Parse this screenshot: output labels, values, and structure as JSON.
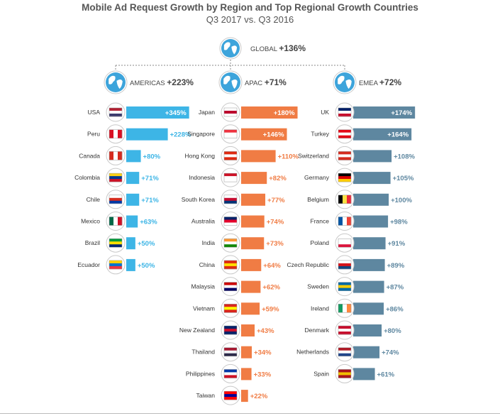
{
  "chart_data": {
    "type": "bar",
    "title": "Mobile Ad Request Growth by Region and Top Regional Growth Countries",
    "subtitle": "Q3 2017 vs. Q3 2016",
    "global": {
      "label": "GLOBAL",
      "value_label": "+136%",
      "value": 136
    },
    "colors": {
      "americas": "#3DB5E6",
      "apac": "#F07C44",
      "emea": "#5E87A0",
      "apac_label": "#F07C44",
      "globe": "#3DA4DB"
    },
    "regions": [
      {
        "key": "americas",
        "label": "AMERICAS",
        "value_label": "+223%",
        "value": 223,
        "countries": [
          "USA",
          "Peru",
          "Canada",
          "Colombia",
          "Chile",
          "Mexico",
          "Brazil",
          "Ecuador"
        ],
        "values": [
          345,
          228,
          80,
          71,
          71,
          63,
          50,
          50
        ],
        "value_labels": [
          "+345%",
          "+228%",
          "+80%",
          "+71%",
          "+71%",
          "+63%",
          "+50%",
          "+50%"
        ]
      },
      {
        "key": "apac",
        "label": "APAC",
        "value_label": "+71%",
        "value": 71,
        "countries": [
          "Japan",
          "Singapore",
          "Hong Kong",
          "Indonesia",
          "South Korea",
          "Australia",
          "India",
          "China",
          "Malaysia",
          "Vietnam",
          "New Zealand",
          "Thailand",
          "Philippines",
          "Taiwan"
        ],
        "values": [
          180,
          146,
          110,
          82,
          77,
          74,
          73,
          64,
          62,
          59,
          43,
          34,
          33,
          22
        ],
        "value_labels": [
          "+180%",
          "+146%",
          "+110%",
          "+82%",
          "+77%",
          "+74%",
          "+73%",
          "+64%",
          "+62%",
          "+59%",
          "+43%",
          "+34%",
          "+33%",
          "+22%"
        ]
      },
      {
        "key": "emea",
        "label": "EMEA",
        "value_label": "+72%",
        "value": 72,
        "countries": [
          "UK",
          "Turkey",
          "Switzerland",
          "Germany",
          "Belgium",
          "France",
          "Poland",
          "Czech Republic",
          "Sweden",
          "Ireland",
          "Denmark",
          "Netherlands",
          "Spain"
        ],
        "values": [
          174,
          164,
          108,
          105,
          100,
          98,
          91,
          89,
          87,
          86,
          80,
          74,
          61
        ],
        "value_labels": [
          "+174%",
          "+164%",
          "+108%",
          "+105%",
          "+100%",
          "+98%",
          "+91%",
          "+89%",
          "+87%",
          "+86%",
          "+80%",
          "+74%",
          "+61%"
        ]
      }
    ]
  }
}
